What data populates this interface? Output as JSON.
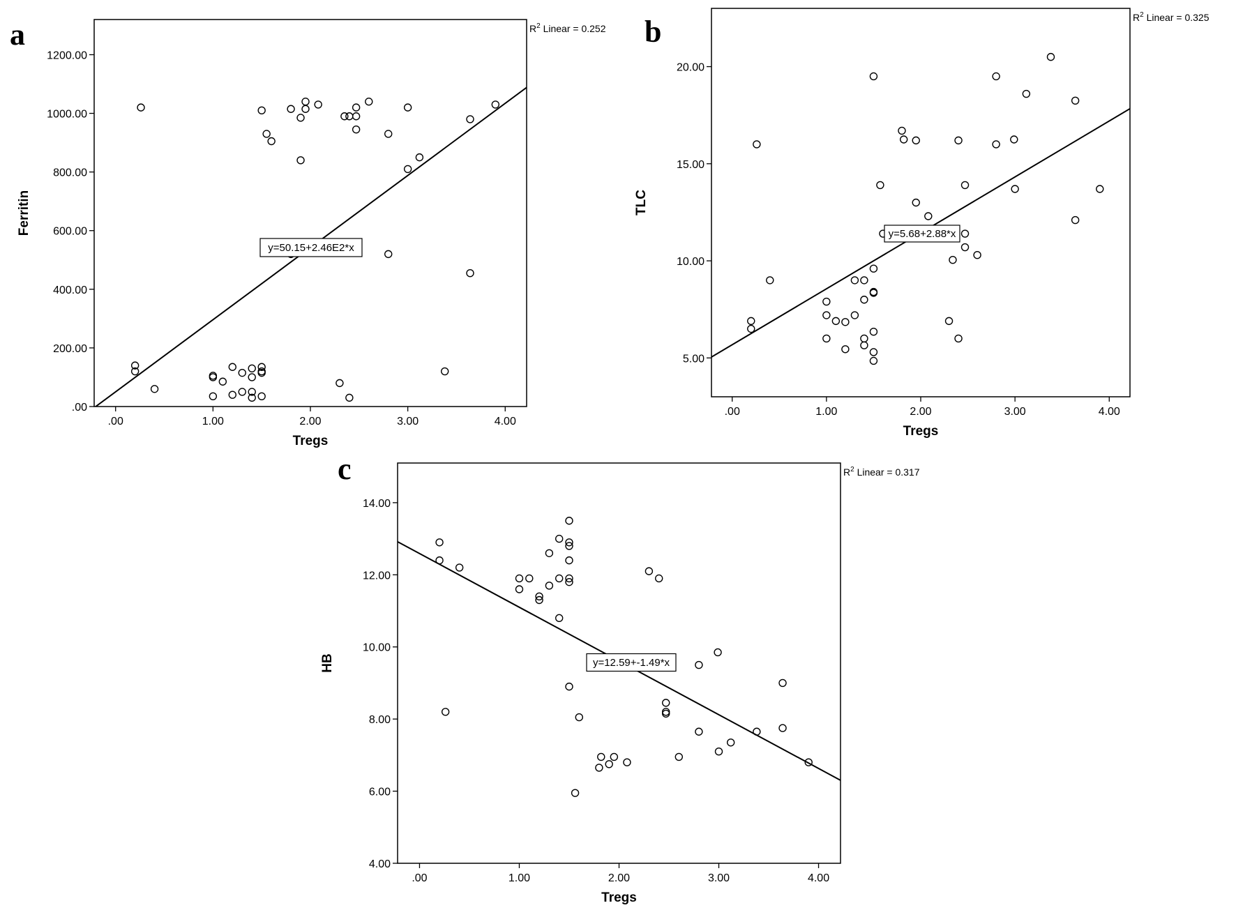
{
  "chart_data": [
    {
      "type": "scatter",
      "panel": "a",
      "xlabel": "Tregs",
      "ylabel": "Ferritin",
      "xlim": [
        -0.22,
        4.22
      ],
      "ylim": [
        0,
        1320
      ],
      "xticks": [
        0,
        1,
        2,
        3,
        4
      ],
      "xtick_labels": [
        ".00",
        "1.00",
        "2.00",
        "3.00",
        "4.00"
      ],
      "yticks": [
        0,
        200,
        400,
        600,
        800,
        1000,
        1200
      ],
      "ytick_labels": [
        ".00",
        "200.00",
        "400.00",
        "600.00",
        "800.00",
        "1000.00",
        "1200.00"
      ],
      "r2_label": "Linear = 0.252",
      "equation": "y=50.15+2.46E2*x",
      "fit": {
        "intercept": 50.15,
        "slope": 246
      },
      "grid": false,
      "points": [
        [
          0.2,
          140
        ],
        [
          0.2,
          120
        ],
        [
          0.26,
          1020
        ],
        [
          0.4,
          60
        ],
        [
          1.0,
          105
        ],
        [
          1.0,
          100
        ],
        [
          1.0,
          35
        ],
        [
          1.1,
          85
        ],
        [
          1.2,
          135
        ],
        [
          1.2,
          40
        ],
        [
          1.3,
          115
        ],
        [
          1.3,
          50
        ],
        [
          1.4,
          130
        ],
        [
          1.4,
          100
        ],
        [
          1.4,
          50
        ],
        [
          1.4,
          30
        ],
        [
          1.5,
          135
        ],
        [
          1.5,
          120
        ],
        [
          1.5,
          115
        ],
        [
          1.5,
          35
        ],
        [
          1.5,
          1010
        ],
        [
          1.55,
          930
        ],
        [
          1.6,
          905
        ],
        [
          1.8,
          1015
        ],
        [
          1.8,
          520
        ],
        [
          1.9,
          985
        ],
        [
          1.9,
          840
        ],
        [
          1.95,
          1040
        ],
        [
          1.95,
          1015
        ],
        [
          2.08,
          1030
        ],
        [
          2.3,
          80
        ],
        [
          2.35,
          990
        ],
        [
          2.4,
          990
        ],
        [
          2.4,
          30
        ],
        [
          2.47,
          1020
        ],
        [
          2.47,
          990
        ],
        [
          2.47,
          945
        ],
        [
          2.6,
          1040
        ],
        [
          2.8,
          930
        ],
        [
          2.8,
          520
        ],
        [
          3.0,
          1020
        ],
        [
          3.0,
          810
        ],
        [
          3.12,
          850
        ],
        [
          3.38,
          120
        ],
        [
          3.64,
          980
        ],
        [
          3.64,
          455
        ],
        [
          3.9,
          1030
        ]
      ]
    },
    {
      "type": "scatter",
      "panel": "b",
      "xlabel": "Tregs",
      "ylabel": "TLC",
      "xlim": [
        -0.22,
        4.22
      ],
      "ylim": [
        3,
        23
      ],
      "xticks": [
        0,
        1,
        2,
        3,
        4
      ],
      "xtick_labels": [
        ".00",
        "1.00",
        "2.00",
        "3.00",
        "4.00"
      ],
      "yticks": [
        5,
        10,
        15,
        20
      ],
      "ytick_labels": [
        "5.00",
        "10.00",
        "15.00",
        "20.00"
      ],
      "r2_label": "Linear = 0.325",
      "equation": "y=5.68+2.88*x",
      "fit": {
        "intercept": 5.68,
        "slope": 2.88
      },
      "grid": false,
      "points": [
        [
          0.2,
          6.9
        ],
        [
          0.2,
          6.5
        ],
        [
          0.26,
          16.0
        ],
        [
          0.4,
          9.0
        ],
        [
          1.0,
          7.9
        ],
        [
          1.0,
          7.2
        ],
        [
          1.0,
          6.0
        ],
        [
          1.1,
          6.9
        ],
        [
          1.2,
          6.85
        ],
        [
          1.2,
          5.45
        ],
        [
          1.3,
          9.0
        ],
        [
          1.3,
          7.2
        ],
        [
          1.4,
          9.0
        ],
        [
          1.4,
          8.0
        ],
        [
          1.4,
          6.0
        ],
        [
          1.4,
          5.65
        ],
        [
          1.5,
          19.5
        ],
        [
          1.5,
          9.6
        ],
        [
          1.5,
          8.4
        ],
        [
          1.5,
          8.35
        ],
        [
          1.5,
          6.35
        ],
        [
          1.5,
          5.3
        ],
        [
          1.5,
          4.85
        ],
        [
          1.57,
          13.9
        ],
        [
          1.6,
          11.4
        ],
        [
          1.8,
          16.7
        ],
        [
          1.82,
          16.25
        ],
        [
          1.95,
          16.2
        ],
        [
          1.95,
          13.0
        ],
        [
          2.08,
          12.3
        ],
        [
          2.3,
          6.9
        ],
        [
          2.34,
          10.05
        ],
        [
          2.4,
          16.2
        ],
        [
          2.4,
          6.0
        ],
        [
          2.47,
          13.9
        ],
        [
          2.47,
          11.4
        ],
        [
          2.47,
          10.7
        ],
        [
          2.6,
          10.3
        ],
        [
          2.8,
          19.5
        ],
        [
          2.8,
          16.0
        ],
        [
          2.99,
          16.25
        ],
        [
          3.0,
          13.7
        ],
        [
          3.12,
          18.6
        ],
        [
          3.38,
          20.5
        ],
        [
          3.64,
          18.25
        ],
        [
          3.64,
          12.1
        ],
        [
          3.9,
          13.7
        ]
      ]
    },
    {
      "type": "scatter",
      "panel": "c",
      "xlabel": "Tregs",
      "ylabel": "HB",
      "xlim": [
        -0.22,
        4.22
      ],
      "ylim": [
        4,
        15.1
      ],
      "xticks": [
        0,
        1,
        2,
        3,
        4
      ],
      "xtick_labels": [
        ".00",
        "1.00",
        "2.00",
        "3.00",
        "4.00"
      ],
      "yticks": [
        4,
        6,
        8,
        10,
        12,
        14
      ],
      "ytick_labels": [
        "4.00",
        "6.00",
        "8.00",
        "10.00",
        "12.00",
        "14.00"
      ],
      "r2_label": "Linear = 0.317",
      "equation": "y=12.59+-1.49*x",
      "fit": {
        "intercept": 12.59,
        "slope": -1.49
      },
      "grid": false,
      "points": [
        [
          0.2,
          12.9
        ],
        [
          0.2,
          12.4
        ],
        [
          0.26,
          8.2
        ],
        [
          0.4,
          12.2
        ],
        [
          1.0,
          11.9
        ],
        [
          1.0,
          11.6
        ],
        [
          1.1,
          11.9
        ],
        [
          1.2,
          11.4
        ],
        [
          1.2,
          11.3
        ],
        [
          1.3,
          12.6
        ],
        [
          1.3,
          11.7
        ],
        [
          1.4,
          13.0
        ],
        [
          1.4,
          11.9
        ],
        [
          1.4,
          10.8
        ],
        [
          1.5,
          13.5
        ],
        [
          1.5,
          12.9
        ],
        [
          1.5,
          12.8
        ],
        [
          1.5,
          12.4
        ],
        [
          1.5,
          11.9
        ],
        [
          1.5,
          11.8
        ],
        [
          1.5,
          8.9
        ],
        [
          1.56,
          5.95
        ],
        [
          1.6,
          8.05
        ],
        [
          1.8,
          6.65
        ],
        [
          1.82,
          6.95
        ],
        [
          1.9,
          6.75
        ],
        [
          1.95,
          6.95
        ],
        [
          2.08,
          6.8
        ],
        [
          2.3,
          12.1
        ],
        [
          2.4,
          11.9
        ],
        [
          2.47,
          8.45
        ],
        [
          2.47,
          8.2
        ],
        [
          2.47,
          8.15
        ],
        [
          2.6,
          6.95
        ],
        [
          2.8,
          9.5
        ],
        [
          2.8,
          7.65
        ],
        [
          2.99,
          9.85
        ],
        [
          3.0,
          7.1
        ],
        [
          3.12,
          7.35
        ],
        [
          3.38,
          7.65
        ],
        [
          3.64,
          9.0
        ],
        [
          3.64,
          7.75
        ],
        [
          3.9,
          6.8
        ]
      ]
    }
  ]
}
